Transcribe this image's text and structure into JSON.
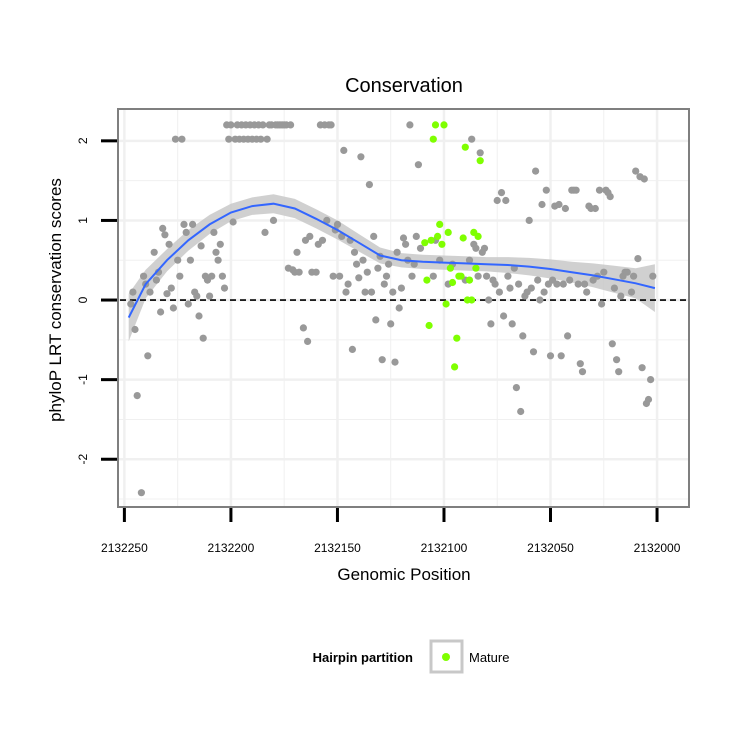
{
  "chart_data": {
    "type": "scatter",
    "title": "Conservation",
    "xlabel": "Genomic Position",
    "ylabel": "phyloP LRT conservation scores",
    "xlim": [
      2132253,
      2131985
    ],
    "ylim": [
      -2.6,
      2.4
    ],
    "x_reversed": true,
    "x_ticks": [
      2132250,
      2132200,
      2132150,
      2132100,
      2132050,
      2132000
    ],
    "x_tick_labels": [
      "2132250",
      "2132200",
      "2132150",
      "2132100",
      "2132050",
      "2132000"
    ],
    "y_ticks": [
      -2,
      -1,
      0,
      1,
      2
    ],
    "y_tick_labels": [
      "-2",
      "-1",
      "0",
      "1",
      "2"
    ],
    "grid": true,
    "reference_line": {
      "y": 0,
      "style": "dashed",
      "color": "#000000"
    },
    "legend": {
      "title": "Hairpin partition",
      "placement": "bottom",
      "entries": [
        {
          "label": "Mature",
          "color": "#7fff00"
        }
      ]
    },
    "colors": {
      "other_points": "#999999",
      "mature_points": "#7fff00",
      "smooth_line": "#3366ff",
      "confidence_band": "#c8c8c8",
      "panel_border": "#7f7f7f",
      "grid": "#f0f0f0"
    },
    "smooth": {
      "x": [
        2132248,
        2132240,
        2132230,
        2132220,
        2132210,
        2132200,
        2132190,
        2132180,
        2132170,
        2132160,
        2132150,
        2132140,
        2132130,
        2132120,
        2132110,
        2132100,
        2132090,
        2132080,
        2132070,
        2132060,
        2132050,
        2132040,
        2132030,
        2132020,
        2132010,
        2132001
      ],
      "y": [
        -0.22,
        0.2,
        0.5,
        0.75,
        0.95,
        1.1,
        1.18,
        1.21,
        1.15,
        1.02,
        0.88,
        0.72,
        0.56,
        0.5,
        0.48,
        0.47,
        0.46,
        0.45,
        0.44,
        0.42,
        0.39,
        0.35,
        0.31,
        0.26,
        0.21,
        0.15
      ],
      "lower": [
        -0.52,
        0.02,
        0.36,
        0.62,
        0.83,
        0.99,
        1.07,
        1.09,
        1.03,
        0.9,
        0.76,
        0.61,
        0.46,
        0.41,
        0.39,
        0.38,
        0.37,
        0.36,
        0.34,
        0.31,
        0.27,
        0.22,
        0.16,
        0.09,
        0.02,
        -0.15
      ],
      "upper": [
        0.08,
        0.38,
        0.64,
        0.88,
        1.07,
        1.21,
        1.29,
        1.33,
        1.27,
        1.14,
        1.0,
        0.83,
        0.66,
        0.59,
        0.57,
        0.56,
        0.55,
        0.54,
        0.54,
        0.53,
        0.51,
        0.48,
        0.46,
        0.43,
        0.4,
        0.45
      ]
    },
    "series": [
      {
        "points": [
          [
            2132247,
            -0.05
          ],
          [
            2132246,
            0.1
          ],
          [
            2132245,
            -0.37
          ],
          [
            2132244,
            -1.2
          ],
          [
            2132242,
            -2.42
          ],
          [
            2132241,
            0.3
          ],
          [
            2132240,
            0.2
          ],
          [
            2132239,
            -0.7
          ],
          [
            2132238,
            0.1
          ],
          [
            2132236,
            0.6
          ],
          [
            2132235,
            0.25
          ],
          [
            2132234,
            0.35
          ],
          [
            2132233,
            -0.15
          ],
          [
            2132232,
            0.9
          ],
          [
            2132231,
            0.82
          ],
          [
            2132230,
            0.08
          ],
          [
            2132229,
            0.7
          ],
          [
            2132228,
            0.15
          ],
          [
            2132227,
            -0.1
          ],
          [
            2132226,
            2.02
          ],
          [
            2132225,
            0.5
          ],
          [
            2132224,
            0.3
          ],
          [
            2132223,
            2.02
          ],
          [
            2132222,
            0.95
          ],
          [
            2132221,
            0.85
          ],
          [
            2132220,
            -0.05
          ],
          [
            2132219,
            0.5
          ],
          [
            2132218,
            0.95
          ],
          [
            2132217,
            0.1
          ],
          [
            2132216,
            0.05
          ],
          [
            2132215,
            -0.2
          ],
          [
            2132214,
            0.68
          ],
          [
            2132213,
            -0.48
          ],
          [
            2132212,
            0.3
          ],
          [
            2132211,
            0.25
          ],
          [
            2132210,
            0.05
          ],
          [
            2132209,
            0.3
          ],
          [
            2132208,
            0.85
          ],
          [
            2132207,
            0.6
          ],
          [
            2132206,
            0.5
          ],
          [
            2132205,
            0.7
          ],
          [
            2132204,
            0.3
          ],
          [
            2132203,
            0.15
          ],
          [
            2132202,
            2.2
          ],
          [
            2132201,
            2.02
          ],
          [
            2132200,
            2.2
          ],
          [
            2132199,
            0.98
          ],
          [
            2132198,
            2.02
          ],
          [
            2132197,
            2.2
          ],
          [
            2132196,
            2.02
          ],
          [
            2132195,
            2.2
          ],
          [
            2132194,
            2.02
          ],
          [
            2132193,
            2.2
          ],
          [
            2132192,
            2.02
          ],
          [
            2132191,
            2.2
          ],
          [
            2132190,
            2.02
          ],
          [
            2132189,
            2.2
          ],
          [
            2132188,
            2.02
          ],
          [
            2132187,
            2.2
          ],
          [
            2132186,
            2.02
          ],
          [
            2132185,
            2.2
          ],
          [
            2132184,
            0.85
          ],
          [
            2132183,
            2.02
          ],
          [
            2132182,
            2.2
          ],
          [
            2132181,
            2.2
          ],
          [
            2132180,
            1.0
          ],
          [
            2132179,
            2.2
          ],
          [
            2132178,
            2.2
          ],
          [
            2132177,
            2.2
          ],
          [
            2132176,
            2.2
          ],
          [
            2132175,
            2.2
          ],
          [
            2132174,
            2.2
          ],
          [
            2132173,
            0.4
          ],
          [
            2132172,
            2.2
          ],
          [
            2132171,
            0.38
          ],
          [
            2132170,
            0.35
          ],
          [
            2132169,
            0.6
          ],
          [
            2132168,
            0.35
          ],
          [
            2132166,
            -0.35
          ],
          [
            2132165,
            0.75
          ],
          [
            2132164,
            -0.52
          ],
          [
            2132163,
            0.8
          ],
          [
            2132162,
            0.35
          ],
          [
            2132160,
            0.35
          ],
          [
            2132159,
            0.7
          ],
          [
            2132158,
            2.2
          ],
          [
            2132157,
            0.75
          ],
          [
            2132156,
            2.2
          ],
          [
            2132155,
            1.0
          ],
          [
            2132154,
            2.2
          ],
          [
            2132153,
            2.2
          ],
          [
            2132152,
            0.3
          ],
          [
            2132151,
            0.88
          ],
          [
            2132150,
            0.95
          ],
          [
            2132149,
            0.3
          ],
          [
            2132148,
            0.8
          ],
          [
            2132147,
            1.88
          ],
          [
            2132146,
            0.1
          ],
          [
            2132145,
            0.2
          ],
          [
            2132144,
            0.75
          ],
          [
            2132143,
            -0.62
          ],
          [
            2132142,
            0.6
          ],
          [
            2132141,
            0.45
          ],
          [
            2132140,
            0.28
          ],
          [
            2132139,
            1.8
          ],
          [
            2132138,
            0.5
          ],
          [
            2132137,
            0.1
          ],
          [
            2132136,
            0.35
          ],
          [
            2132135,
            1.45
          ],
          [
            2132134,
            0.1
          ],
          [
            2132133,
            0.8
          ],
          [
            2132132,
            -0.25
          ],
          [
            2132131,
            0.4
          ],
          [
            2132130,
            0.55
          ],
          [
            2132129,
            -0.75
          ],
          [
            2132128,
            0.2
          ],
          [
            2132127,
            0.3
          ],
          [
            2132126,
            0.45
          ],
          [
            2132125,
            -0.3
          ],
          [
            2132124,
            0.1
          ],
          [
            2132123,
            -0.78
          ],
          [
            2132122,
            0.6
          ],
          [
            2132121,
            -0.1
          ],
          [
            2132120,
            0.15
          ],
          [
            2132119,
            0.78
          ],
          [
            2132118,
            0.7
          ],
          [
            2132117,
            0.5
          ],
          [
            2132116,
            2.2
          ],
          [
            2132115,
            0.3
          ],
          [
            2132114,
            0.45
          ],
          [
            2132113,
            0.8
          ],
          [
            2132112,
            1.7
          ],
          [
            2132111,
            0.65
          ],
          [
            2132105,
            0.3
          ],
          [
            2132104,
            0.75
          ],
          [
            2132102,
            0.5
          ],
          [
            2132098,
            0.2
          ],
          [
            2132096,
            0.45
          ],
          [
            2132090,
            0.25
          ],
          [
            2132088,
            0.5
          ],
          [
            2132087,
            2.02
          ],
          [
            2132086,
            0.7
          ],
          [
            2132085,
            0.65
          ],
          [
            2132084,
            0.3
          ],
          [
            2132083,
            1.85
          ],
          [
            2132082,
            0.6
          ],
          [
            2132081,
            0.65
          ],
          [
            2132080,
            0.3
          ],
          [
            2132079,
            0.0
          ],
          [
            2132078,
            -0.3
          ],
          [
            2132077,
            0.25
          ],
          [
            2132076,
            0.2
          ],
          [
            2132075,
            1.25
          ],
          [
            2132074,
            0.1
          ],
          [
            2132073,
            1.35
          ],
          [
            2132072,
            -0.2
          ],
          [
            2132071,
            1.25
          ],
          [
            2132070,
            0.3
          ],
          [
            2132069,
            0.15
          ],
          [
            2132068,
            -0.3
          ],
          [
            2132067,
            0.4
          ],
          [
            2132066,
            -1.1
          ],
          [
            2132065,
            0.2
          ],
          [
            2132064,
            -1.4
          ],
          [
            2132063,
            -0.45
          ],
          [
            2132062,
            0.05
          ],
          [
            2132061,
            0.1
          ],
          [
            2132060,
            1.0
          ],
          [
            2132059,
            0.15
          ],
          [
            2132058,
            -0.65
          ],
          [
            2132057,
            1.62
          ],
          [
            2132056,
            0.25
          ],
          [
            2132055,
            0.0
          ],
          [
            2132054,
            1.2
          ],
          [
            2132053,
            0.1
          ],
          [
            2132052,
            1.38
          ],
          [
            2132051,
            0.2
          ],
          [
            2132050,
            -0.7
          ],
          [
            2132049,
            0.25
          ],
          [
            2132048,
            1.18
          ],
          [
            2132047,
            0.2
          ],
          [
            2132046,
            1.2
          ],
          [
            2132045,
            -0.7
          ],
          [
            2132044,
            0.2
          ],
          [
            2132043,
            1.15
          ],
          [
            2132042,
            -0.45
          ],
          [
            2132041,
            0.25
          ],
          [
            2132040,
            1.38
          ],
          [
            2132039,
            1.38
          ],
          [
            2132038,
            1.38
          ],
          [
            2132037,
            0.2
          ],
          [
            2132036,
            -0.8
          ],
          [
            2132035,
            -0.9
          ],
          [
            2132034,
            0.2
          ],
          [
            2132033,
            0.1
          ],
          [
            2132032,
            1.18
          ],
          [
            2132031,
            1.15
          ],
          [
            2132030,
            0.25
          ],
          [
            2132029,
            1.15
          ],
          [
            2132028,
            0.3
          ],
          [
            2132027,
            1.38
          ],
          [
            2132026,
            -0.05
          ],
          [
            2132025,
            0.35
          ],
          [
            2132024,
            1.38
          ],
          [
            2132023,
            1.35
          ],
          [
            2132022,
            1.3
          ],
          [
            2132021,
            -0.55
          ],
          [
            2132020,
            0.15
          ],
          [
            2132019,
            -0.75
          ],
          [
            2132018,
            -0.9
          ],
          [
            2132017,
            0.05
          ],
          [
            2132016,
            0.3
          ],
          [
            2132015,
            0.35
          ],
          [
            2132014,
            0.35
          ],
          [
            2132012,
            0.1
          ],
          [
            2132011,
            0.3
          ],
          [
            2132010,
            1.62
          ],
          [
            2132009,
            0.52
          ],
          [
            2132008,
            1.55
          ],
          [
            2132007,
            -0.85
          ],
          [
            2132006,
            1.52
          ],
          [
            2132005,
            -1.3
          ],
          [
            2132004,
            -1.25
          ],
          [
            2132003,
            -1.0
          ],
          [
            2132002,
            0.3
          ]
        ]
      },
      {
        "name": "Mature",
        "points": [
          [
            2132109,
            0.72
          ],
          [
            2132108,
            0.25
          ],
          [
            2132107,
            -0.32
          ],
          [
            2132106,
            0.75
          ],
          [
            2132105,
            2.02
          ],
          [
            2132104,
            2.2
          ],
          [
            2132103,
            0.8
          ],
          [
            2132102,
            0.95
          ],
          [
            2132101,
            0.7
          ],
          [
            2132100,
            2.2
          ],
          [
            2132099,
            -0.05
          ],
          [
            2132098,
            0.85
          ],
          [
            2132097,
            0.4
          ],
          [
            2132096,
            0.22
          ],
          [
            2132095,
            -0.84
          ],
          [
            2132094,
            -0.48
          ],
          [
            2132093,
            0.3
          ],
          [
            2132092,
            0.3
          ],
          [
            2132091,
            0.78
          ],
          [
            2132090,
            1.92
          ],
          [
            2132089,
            0.0
          ],
          [
            2132088,
            0.25
          ],
          [
            2132087,
            0.0
          ],
          [
            2132086,
            0.85
          ],
          [
            2132085,
            0.4
          ],
          [
            2132084,
            0.8
          ],
          [
            2132083,
            1.75
          ]
        ]
      }
    ]
  }
}
